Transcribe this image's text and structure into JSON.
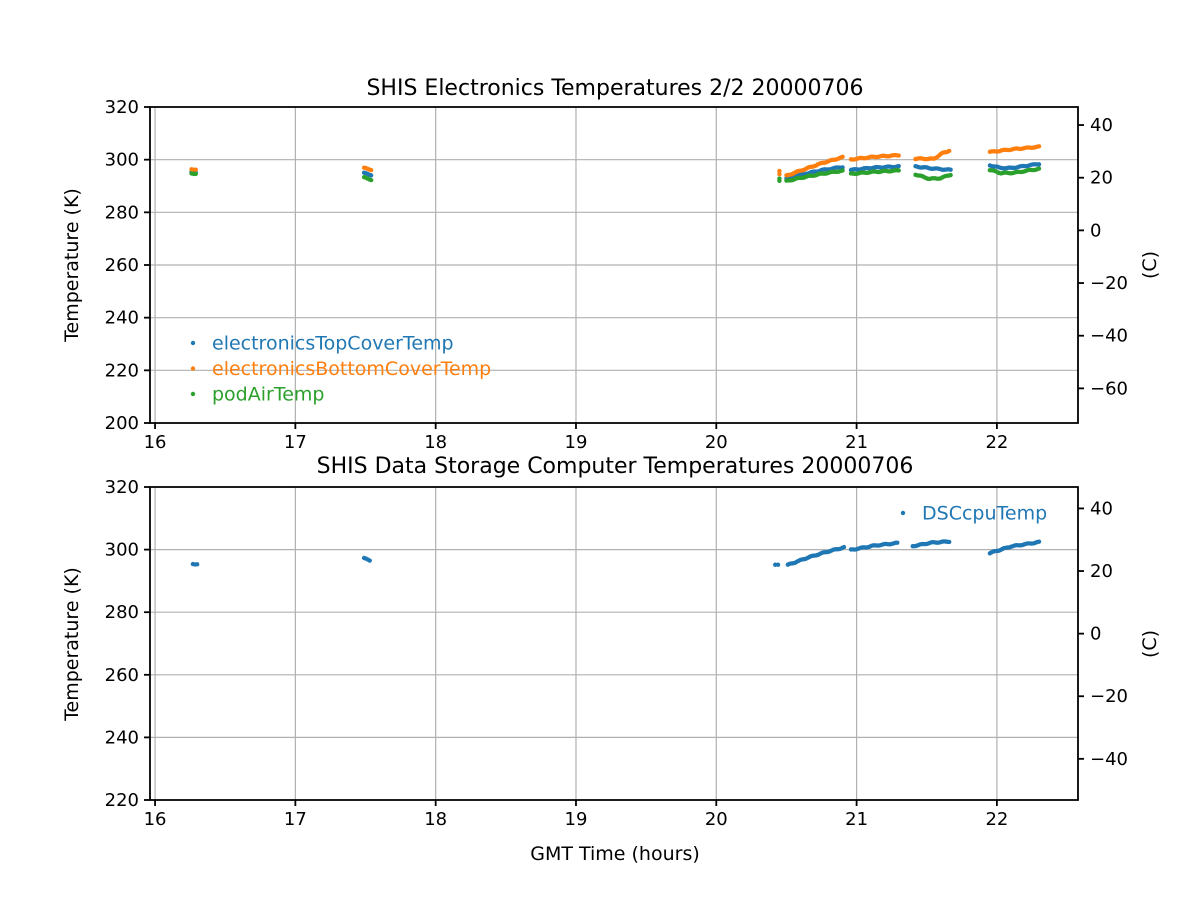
{
  "colors": {
    "background": "#ffffff",
    "axis": "#000000",
    "grid": "#b0b0b0"
  },
  "kelvin_celsius_offset": 273.15,
  "chart_data": [
    {
      "type": "scatter",
      "title": "SHIS Electronics Temperatures 2/2 20000706",
      "xlabel": "",
      "ylabel_left": "Temperature (K)",
      "ylabel_right": "(C)",
      "units": {
        "x": "GMT hours",
        "y_left": "K",
        "y_right": "C"
      },
      "xlim": [
        15.964,
        22.578
      ],
      "ylim_left": [
        200,
        320
      ],
      "xticks": [
        16,
        17,
        18,
        19,
        20,
        21,
        22
      ],
      "yticks_left": [
        200,
        220,
        240,
        260,
        280,
        300,
        320
      ],
      "yticks_right_celsius": [
        -60,
        -40,
        -20,
        0,
        20,
        40
      ],
      "grid": true,
      "legend": {
        "frame": false,
        "position": "lower left"
      },
      "series": [
        {
          "name": "electronicsTopCoverTemp",
          "color": "#1f77b4",
          "marker": "dot",
          "segments": [
            [
              [
                16.26,
                295.5
              ],
              [
                16.29,
                295.2
              ]
            ],
            [
              [
                17.49,
                294.9
              ],
              [
                17.54,
                294.2
              ]
            ],
            [
              [
                20.5,
                292.9
              ],
              [
                20.62,
                294.5
              ],
              [
                20.76,
                296.1
              ],
              [
                20.9,
                297.2
              ]
            ],
            [
              [
                20.96,
                296.1
              ],
              [
                21.13,
                297.0
              ],
              [
                21.3,
                297.4
              ]
            ],
            [
              [
                21.42,
                297.4
              ],
              [
                21.55,
                296.6
              ],
              [
                21.67,
                296.1
              ]
            ],
            [
              [
                21.95,
                297.9
              ],
              [
                22.02,
                296.9
              ],
              [
                22.1,
                296.8
              ],
              [
                22.3,
                298.4
              ]
            ]
          ]
        },
        {
          "name": "electronicsBottomCoverTemp",
          "color": "#ff7f0e",
          "marker": "dot",
          "segments": [
            [
              [
                16.26,
                296.5
              ],
              [
                16.29,
                296.2
              ]
            ],
            [
              [
                17.49,
                296.8
              ],
              [
                17.54,
                296.2
              ]
            ],
            [
              [
                20.45,
                294.6
              ],
              [
                20.45,
                295.6
              ]
            ],
            [
              [
                20.5,
                293.9
              ],
              [
                20.62,
                296.2
              ],
              [
                20.76,
                298.8
              ],
              [
                20.9,
                300.9
              ]
            ],
            [
              [
                20.96,
                300.1
              ],
              [
                21.13,
                301.1
              ],
              [
                21.3,
                301.7
              ]
            ],
            [
              [
                21.42,
                300.4
              ],
              [
                21.55,
                300.3
              ],
              [
                21.61,
                302.4
              ],
              [
                21.66,
                303.4
              ]
            ],
            [
              [
                21.95,
                302.9
              ],
              [
                22.1,
                303.9
              ],
              [
                22.3,
                304.9
              ]
            ]
          ]
        },
        {
          "name": "podAirTemp",
          "color": "#2ca02c",
          "marker": "dot",
          "segments": [
            [
              [
                16.26,
                294.9
              ],
              [
                16.29,
                294.6
              ]
            ],
            [
              [
                17.49,
                293.2
              ],
              [
                17.54,
                292.4
              ]
            ],
            [
              [
                20.45,
                292.0
              ],
              [
                20.45,
                292.7
              ]
            ],
            [
              [
                20.5,
                291.9
              ],
              [
                20.62,
                293.3
              ],
              [
                20.76,
                294.7
              ],
              [
                20.9,
                295.8
              ]
            ],
            [
              [
                20.96,
                294.6
              ],
              [
                21.13,
                295.4
              ],
              [
                21.3,
                295.9
              ]
            ],
            [
              [
                21.42,
                294.4
              ],
              [
                21.52,
                292.7
              ],
              [
                21.6,
                293.0
              ],
              [
                21.67,
                294.3
              ]
            ],
            [
              [
                21.95,
                296.1
              ],
              [
                22.03,
                294.9
              ],
              [
                22.12,
                295.0
              ],
              [
                22.3,
                296.5
              ]
            ]
          ]
        }
      ]
    },
    {
      "type": "scatter",
      "title": "SHIS Data Storage Computer Temperatures 20000706",
      "xlabel": "GMT Time (hours)",
      "ylabel_left": "Temperature (K)",
      "ylabel_right": "(C)",
      "units": {
        "x": "GMT hours",
        "y_left": "K",
        "y_right": "C"
      },
      "xlim": [
        15.964,
        22.578
      ],
      "ylim_left": [
        220,
        320
      ],
      "xticks": [
        16,
        17,
        18,
        19,
        20,
        21,
        22
      ],
      "yticks_left": [
        220,
        240,
        260,
        280,
        300,
        320
      ],
      "yticks_right_celsius": [
        -40,
        -20,
        0,
        20,
        40
      ],
      "grid": true,
      "legend": {
        "frame": false,
        "position": "upper right"
      },
      "series": [
        {
          "name": "DSCcpuTemp",
          "color": "#1f77b4",
          "marker": "dot",
          "segments": [
            [
              [
                16.27,
                295.5
              ],
              [
                16.3,
                295.3
              ]
            ],
            [
              [
                17.49,
                297.2
              ],
              [
                17.53,
                296.6
              ]
            ],
            [
              [
                20.42,
                295.3
              ],
              [
                20.44,
                295.2
              ]
            ],
            [
              [
                20.51,
                295.1
              ],
              [
                20.65,
                297.4
              ],
              [
                20.78,
                299.2
              ],
              [
                20.91,
                300.7
              ]
            ],
            [
              [
                20.96,
                299.9
              ],
              [
                21.13,
                301.3
              ],
              [
                21.29,
                302.1
              ]
            ],
            [
              [
                21.4,
                301.1
              ],
              [
                21.53,
                302.2
              ],
              [
                21.66,
                302.6
              ]
            ],
            [
              [
                21.95,
                298.9
              ],
              [
                22.1,
                301.0
              ],
              [
                22.3,
                302.4
              ]
            ]
          ]
        }
      ]
    }
  ]
}
